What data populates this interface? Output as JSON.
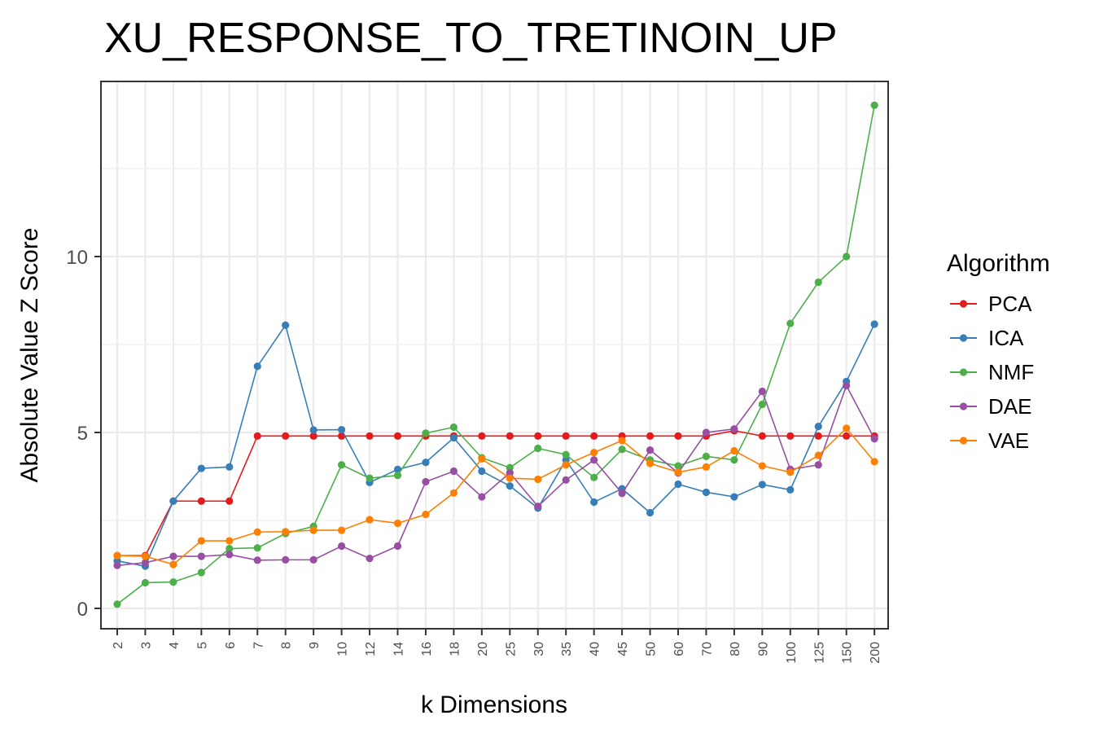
{
  "chart_data": {
    "type": "line",
    "title": "XU_RESPONSE_TO_TRETINOIN_UP",
    "xlabel": "k Dimensions",
    "ylabel": "Absolute Value Z Score",
    "categories": [
      "2",
      "3",
      "4",
      "5",
      "6",
      "7",
      "8",
      "9",
      "10",
      "12",
      "14",
      "16",
      "18",
      "20",
      "25",
      "30",
      "35",
      "40",
      "45",
      "50",
      "60",
      "70",
      "80",
      "90",
      "100",
      "125",
      "150",
      "200"
    ],
    "y_ticks": [
      0,
      5,
      10
    ],
    "ylim": [
      -0.6,
      15.1
    ],
    "grid": true,
    "legend": {
      "title": "Algorithm",
      "position": "right"
    },
    "series": [
      {
        "name": "PCA",
        "color": "#e41a1c",
        "values": [
          1.5,
          1.5,
          3.05,
          3.05,
          3.05,
          4.9,
          4.9,
          4.9,
          4.9,
          4.9,
          4.9,
          4.9,
          4.9,
          4.9,
          4.9,
          4.9,
          4.9,
          4.9,
          4.9,
          4.9,
          4.9,
          4.9,
          5.05,
          4.9,
          4.9,
          4.9,
          4.9,
          4.9
        ]
      },
      {
        "name": "ICA",
        "color": "#377eb8",
        "values": [
          1.35,
          1.2,
          3.05,
          3.98,
          4.02,
          6.88,
          8.05,
          5.07,
          5.08,
          3.58,
          3.95,
          4.15,
          4.85,
          3.9,
          3.48,
          2.85,
          4.22,
          3.02,
          3.4,
          2.72,
          3.53,
          3.3,
          3.17,
          3.52,
          3.37,
          5.17,
          6.45,
          8.08
        ]
      },
      {
        "name": "NMF",
        "color": "#4daf4a",
        "values": [
          0.12,
          0.73,
          0.75,
          1.02,
          1.7,
          1.72,
          2.13,
          2.33,
          4.08,
          3.7,
          3.78,
          4.98,
          5.15,
          4.28,
          4.0,
          4.55,
          4.37,
          3.72,
          4.52,
          4.22,
          4.05,
          4.32,
          4.22,
          5.8,
          8.1,
          9.27,
          10.0,
          14.3
        ]
      },
      {
        "name": "DAE",
        "color": "#984ea3",
        "values": [
          1.22,
          1.3,
          1.48,
          1.48,
          1.53,
          1.37,
          1.38,
          1.38,
          1.77,
          1.42,
          1.77,
          3.6,
          3.9,
          3.17,
          3.85,
          2.9,
          3.65,
          4.22,
          3.27,
          4.5,
          3.85,
          5.0,
          5.1,
          6.17,
          3.95,
          4.08,
          6.33,
          4.82
        ]
      },
      {
        "name": "VAE",
        "color": "#ff7f00",
        "values": [
          1.5,
          1.48,
          1.25,
          1.92,
          1.92,
          2.17,
          2.18,
          2.22,
          2.22,
          2.52,
          2.42,
          2.67,
          3.28,
          4.25,
          3.7,
          3.67,
          4.08,
          4.43,
          4.77,
          4.12,
          3.87,
          4.02,
          4.48,
          4.05,
          3.87,
          4.35,
          5.12,
          4.17
        ]
      }
    ]
  }
}
